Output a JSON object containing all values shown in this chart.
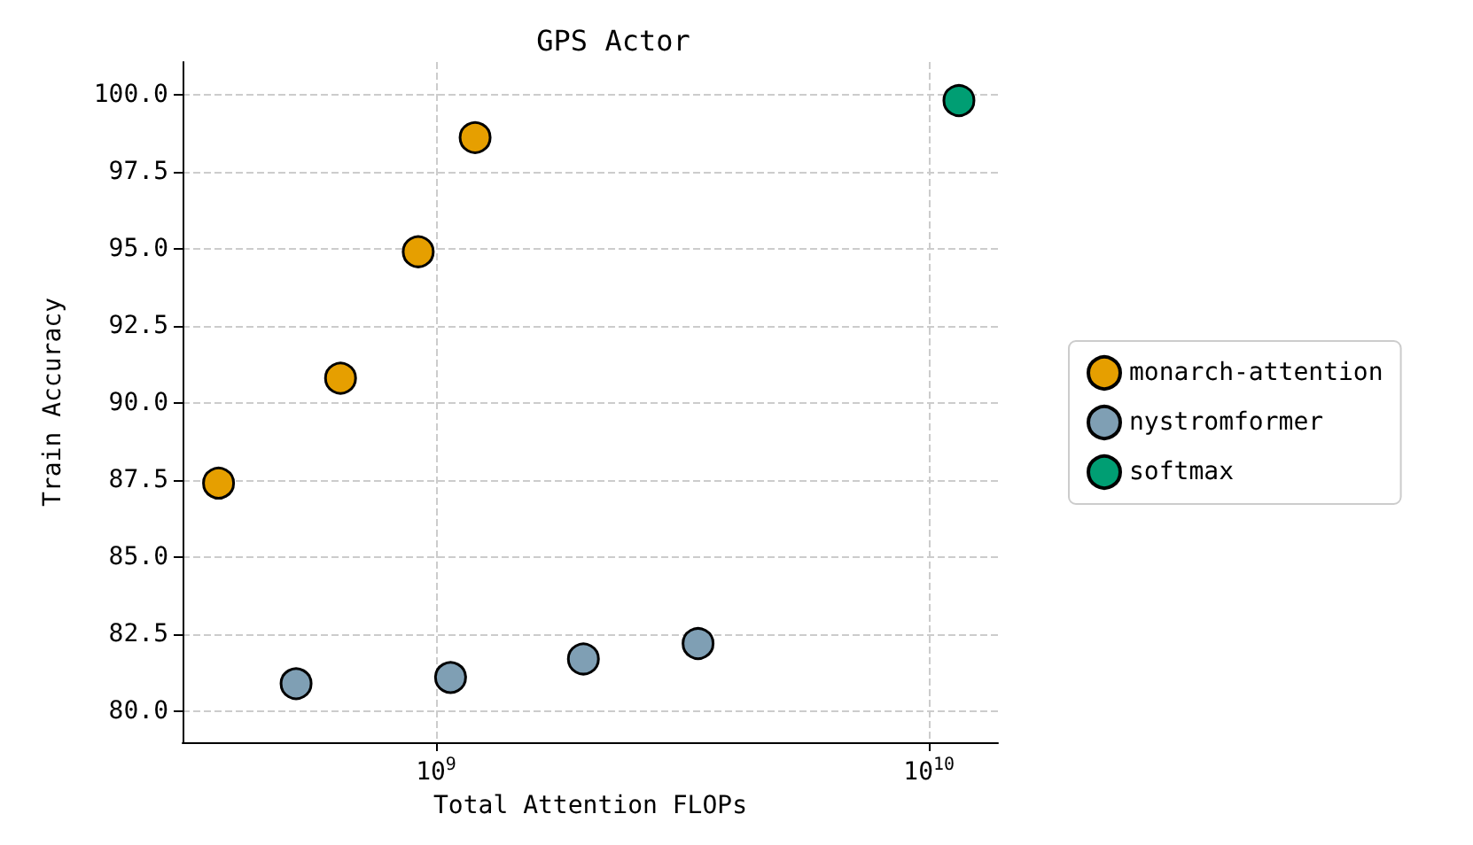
{
  "chart_data": {
    "type": "scatter",
    "title": "GPS Actor",
    "xlabel": "Total Attention FLOPs",
    "ylabel": "Train Accuracy",
    "log": "x",
    "grid": true,
    "legend": "right",
    "marker": "circle",
    "xlim": [
      306000000,
      13800000000
    ],
    "xticks": [
      {
        "value": 1000000000,
        "label": "10$^{9}$"
      },
      {
        "value": 10000000000,
        "label": "10$^{10}$"
      }
    ],
    "ylim": [
      79,
      101.05
    ],
    "yticks": [
      {
        "value": 80,
        "label": "80.0"
      },
      {
        "value": 82.5,
        "label": "82.5"
      },
      {
        "value": 85,
        "label": "85.0"
      },
      {
        "value": 87.5,
        "label": "87.5"
      },
      {
        "value": 90,
        "label": "90.0"
      },
      {
        "value": 92.5,
        "label": "92.5"
      },
      {
        "value": 95,
        "label": "95.0"
      },
      {
        "value": 97.5,
        "label": "97.5"
      },
      {
        "value": 100,
        "label": "100.0"
      }
    ],
    "series": [
      {
        "name": "monarch-attention",
        "color": "#e69f00",
        "x": [
          362000000,
          640000000,
          920000000,
          1200000000
        ],
        "values": [
          87.4,
          90.8,
          94.9,
          98.6
        ]
      },
      {
        "name": "nystromformer",
        "color": "#7f9fb4",
        "x": [
          520000000,
          1070000000,
          1990000000,
          3400000000
        ],
        "values": [
          80.9,
          81.1,
          81.7,
          82.2
        ]
      },
      {
        "name": "softmax",
        "color": "#009e73",
        "x": [
          11500000000
        ],
        "values": [
          99.8
        ]
      }
    ]
  }
}
